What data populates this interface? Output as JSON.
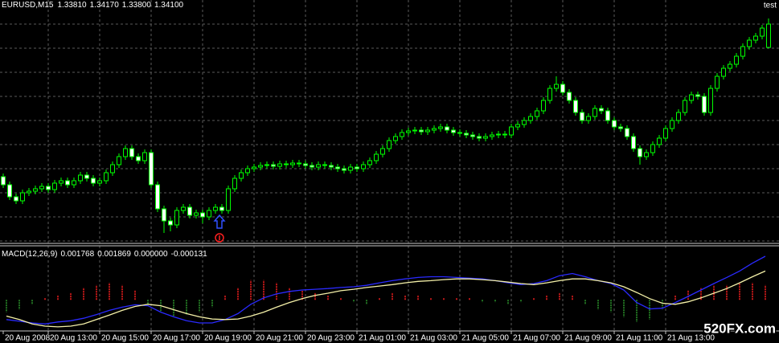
{
  "chart_data": [
    {
      "type": "candlestick",
      "title": "EURUSD,M15",
      "header_values": [
        "1.33810",
        "1.34170",
        "1.33800",
        "1.34100"
      ],
      "annotation": "test",
      "categories": [
        "20 Aug 2008",
        null,
        null,
        null,
        null,
        null,
        null,
        "20 Aug 13:00",
        null,
        null,
        null,
        null,
        null,
        null,
        null,
        "20 Aug 15:00",
        null,
        null,
        null,
        null,
        null,
        null,
        null,
        "20 Aug 17:00",
        null,
        null,
        null,
        null,
        null,
        null,
        null,
        "20 Aug 19:00",
        null,
        null,
        null,
        null,
        null,
        null,
        null,
        "20 Aug 21:00",
        null,
        null,
        null,
        null,
        null,
        null,
        null,
        "20 Aug 23:00",
        null,
        null,
        null,
        null,
        null,
        null,
        null,
        "21 Aug 01:00",
        null,
        null,
        null,
        null,
        null,
        null,
        null,
        "21 Aug 03:00",
        null,
        null,
        null,
        null,
        null,
        null,
        null,
        "21 Aug 05:00",
        null,
        null,
        null,
        null,
        null,
        null,
        null,
        "21 Aug 07:00",
        null,
        null,
        null,
        null,
        null,
        null,
        null,
        "21 Aug 09:00",
        null,
        null,
        null,
        null,
        null,
        null,
        null,
        "21 Aug 11:00",
        null,
        null,
        null,
        null,
        null,
        null,
        null,
        "21 Aug 13:00",
        null,
        null,
        null,
        null,
        null,
        null,
        null,
        null,
        null,
        null,
        null,
        null,
        null,
        null,
        null,
        null
      ],
      "open": [
        1.322,
        1.321,
        1.3195,
        1.319,
        1.32,
        1.3202,
        1.3205,
        1.3208,
        1.3204,
        1.3212,
        1.3215,
        1.321,
        1.3215,
        1.3222,
        1.3218,
        1.3212,
        1.3215,
        1.3225,
        1.3235,
        1.3245,
        1.3255,
        1.3245,
        1.324,
        1.325,
        1.321,
        1.318,
        1.3165,
        1.316,
        1.3178,
        1.3182,
        1.3172,
        1.3175,
        1.317,
        1.3178,
        1.3182,
        1.3178,
        1.3205,
        1.3218,
        1.3225,
        1.323,
        1.3232,
        1.3234,
        1.3235,
        1.3233,
        1.3236,
        1.3235,
        1.3237,
        1.3236,
        1.3234,
        1.3232,
        1.3235,
        1.3234,
        1.3232,
        1.323,
        1.3228,
        1.3232,
        1.323,
        1.3235,
        1.324,
        1.3248,
        1.3255,
        1.3265,
        1.327,
        1.3275,
        1.3277,
        1.3278,
        1.3276,
        1.3278,
        1.328,
        1.3282,
        1.3278,
        1.3275,
        1.3274,
        1.3272,
        1.327,
        1.3268,
        1.327,
        1.3272,
        1.3273,
        1.3272,
        1.3282,
        1.3285,
        1.329,
        1.3295,
        1.3302,
        1.3315,
        1.333,
        1.3335,
        1.3325,
        1.3315,
        1.33,
        1.329,
        1.3295,
        1.3305,
        1.3302,
        1.329,
        1.3282,
        1.328,
        1.327,
        1.3255,
        1.3245,
        1.325,
        1.326,
        1.3268,
        1.328,
        1.329,
        1.33,
        1.3315,
        1.3322,
        1.332,
        1.33,
        1.333,
        1.3345,
        1.3355,
        1.336,
        1.337,
        1.3382,
        1.339,
        1.3395,
        1.3381
      ],
      "high": [
        1.3224,
        1.3214,
        1.3199,
        1.3204,
        1.3206,
        1.3209,
        1.3212,
        1.3212,
        1.3216,
        1.3219,
        1.3219,
        1.3219,
        1.3226,
        1.3226,
        1.3222,
        1.3219,
        1.3229,
        1.3239,
        1.3249,
        1.3259,
        1.3259,
        1.3249,
        1.3254,
        1.3254,
        1.3214,
        1.3184,
        1.3169,
        1.3182,
        1.3186,
        1.3186,
        1.3179,
        1.3179,
        1.3182,
        1.3186,
        1.3186,
        1.3209,
        1.3222,
        1.3229,
        1.3234,
        1.3236,
        1.3238,
        1.3239,
        1.3239,
        1.324,
        1.324,
        1.3241,
        1.3241,
        1.324,
        1.3238,
        1.3239,
        1.3239,
        1.3238,
        1.3236,
        1.3234,
        1.3236,
        1.3236,
        1.3239,
        1.3244,
        1.3252,
        1.3259,
        1.3269,
        1.3274,
        1.3279,
        1.3281,
        1.3282,
        1.3282,
        1.3282,
        1.3284,
        1.3286,
        1.3286,
        1.3282,
        1.3279,
        1.3278,
        1.3276,
        1.3274,
        1.3274,
        1.3276,
        1.3277,
        1.3277,
        1.3286,
        1.3289,
        1.3294,
        1.3299,
        1.3306,
        1.3319,
        1.3334,
        1.3345,
        1.3339,
        1.3329,
        1.3319,
        1.3304,
        1.3299,
        1.3309,
        1.3309,
        1.3306,
        1.3294,
        1.3286,
        1.3284,
        1.3274,
        1.3259,
        1.3254,
        1.3264,
        1.3272,
        1.3284,
        1.3294,
        1.3304,
        1.3319,
        1.3326,
        1.3326,
        1.3324,
        1.3334,
        1.3349,
        1.3359,
        1.3364,
        1.3374,
        1.3386,
        1.3394,
        1.3399,
        1.3409,
        1.3417
      ],
      "low": [
        1.3206,
        1.3191,
        1.3186,
        1.3186,
        1.3196,
        1.3198,
        1.3201,
        1.32,
        1.32,
        1.3208,
        1.3206,
        1.3206,
        1.3211,
        1.3214,
        1.3208,
        1.3208,
        1.3211,
        1.3221,
        1.3231,
        1.3241,
        1.3241,
        1.3236,
        1.3236,
        1.3206,
        1.3176,
        1.315,
        1.3152,
        1.3156,
        1.3174,
        1.3168,
        1.3168,
        1.3162,
        1.3166,
        1.3174,
        1.3174,
        1.3174,
        1.3201,
        1.3214,
        1.3221,
        1.3226,
        1.3228,
        1.323,
        1.3229,
        1.3229,
        1.3231,
        1.3231,
        1.3232,
        1.323,
        1.3228,
        1.3228,
        1.323,
        1.3228,
        1.3226,
        1.3224,
        1.3224,
        1.3226,
        1.3226,
        1.3231,
        1.3236,
        1.3244,
        1.3251,
        1.3261,
        1.3266,
        1.3271,
        1.3273,
        1.3272,
        1.3272,
        1.3274,
        1.3276,
        1.3274,
        1.3271,
        1.327,
        1.3268,
        1.3266,
        1.3264,
        1.3264,
        1.3266,
        1.3268,
        1.3268,
        1.3268,
        1.3278,
        1.3281,
        1.3286,
        1.3291,
        1.3298,
        1.3311,
        1.3326,
        1.3321,
        1.3311,
        1.3296,
        1.3286,
        1.3286,
        1.3291,
        1.3298,
        1.3286,
        1.3278,
        1.3276,
        1.3266,
        1.3251,
        1.3235,
        1.3241,
        1.3246,
        1.3256,
        1.3264,
        1.3276,
        1.3286,
        1.3296,
        1.3311,
        1.3316,
        1.3296,
        1.3296,
        1.3326,
        1.3341,
        1.3351,
        1.3356,
        1.3366,
        1.3378,
        1.3386,
        1.3391,
        1.338
      ],
      "close": [
        1.321,
        1.3195,
        1.319,
        1.32,
        1.3202,
        1.3205,
        1.3208,
        1.3204,
        1.3212,
        1.3215,
        1.321,
        1.3215,
        1.3222,
        1.3218,
        1.3212,
        1.3215,
        1.3225,
        1.3235,
        1.3245,
        1.3255,
        1.3245,
        1.324,
        1.325,
        1.321,
        1.318,
        1.3165,
        1.316,
        1.3178,
        1.3182,
        1.3172,
        1.3175,
        1.317,
        1.3178,
        1.3182,
        1.3178,
        1.3205,
        1.3218,
        1.3225,
        1.323,
        1.3232,
        1.3234,
        1.3235,
        1.3233,
        1.3236,
        1.3235,
        1.3237,
        1.3236,
        1.3234,
        1.3232,
        1.3235,
        1.3234,
        1.3232,
        1.323,
        1.3228,
        1.3232,
        1.323,
        1.3235,
        1.324,
        1.3248,
        1.3255,
        1.3265,
        1.327,
        1.3275,
        1.3277,
        1.3278,
        1.3276,
        1.3278,
        1.328,
        1.3282,
        1.3278,
        1.3275,
        1.3274,
        1.3272,
        1.327,
        1.3268,
        1.327,
        1.3272,
        1.3273,
        1.3272,
        1.3282,
        1.3285,
        1.329,
        1.3295,
        1.3302,
        1.3315,
        1.333,
        1.3335,
        1.3325,
        1.3315,
        1.33,
        1.329,
        1.3295,
        1.3305,
        1.3302,
        1.329,
        1.3282,
        1.328,
        1.327,
        1.3255,
        1.3245,
        1.325,
        1.326,
        1.3268,
        1.328,
        1.329,
        1.33,
        1.3315,
        1.3322,
        1.332,
        1.33,
        1.333,
        1.3345,
        1.3355,
        1.336,
        1.337,
        1.3382,
        1.339,
        1.3395,
        1.3405,
        1.341
      ],
      "wick_color": "#00ff00",
      "up_color": "#000000",
      "down_color": "#ffffff",
      "ylim": [
        1.314,
        1.344
      ],
      "yticks": [
        1.314,
        1.317,
        1.32,
        1.323,
        1.326,
        1.329,
        1.332,
        1.335,
        1.338,
        1.341
      ],
      "grid": true
    },
    {
      "type": "macd",
      "title": "MACD(12,26,9)",
      "header_values": [
        "0.001768",
        "0.001869",
        "0.000000",
        "-0.000131"
      ],
      "ylim": [
        -0.0012,
        0.002
      ],
      "histogram": {
        "up_color": "#ff2020",
        "down_color": "#2e9a2e",
        "values": [
          -0.0005,
          -0.0004,
          -0.0002,
          0.0001,
          0.0002,
          0.0003,
          0.0005,
          0.0006,
          0.0007,
          0.0006,
          0.0004,
          -0.0002,
          -0.0005,
          -0.0007,
          -0.0006,
          -0.0005,
          -0.0003,
          0.0002,
          0.0005,
          0.0008,
          0.0008,
          0.0007,
          0.0005,
          0.0004,
          0.0003,
          0.0002,
          0.0001,
          -0.0001,
          -0.0002,
          0.0001,
          0.0003,
          0.0002,
          0.0002,
          0.0001,
          0.0001,
          0.0001,
          0.0001,
          -0.0001,
          -0.0001,
          -0.0002,
          -0.0001,
          0.0001,
          0.0002,
          0.0003,
          0.0002,
          -0.0002,
          -0.0004,
          -0.0005,
          -0.0007,
          -0.0009,
          -0.0008,
          -0.0004,
          0.0002,
          0.0004,
          0.0005,
          0.0006,
          0.0006,
          0.0007,
          0.0007,
          0.0006
        ]
      },
      "series": [
        {
          "color": "#2a2aff",
          "values": [
            -0.0008,
            -0.00087,
            -0.00094,
            -0.00098,
            -0.0009,
            -0.00085,
            -0.00075,
            -0.0006,
            -0.00043,
            -0.0003,
            -0.0002,
            -0.00024,
            -0.0005,
            -0.00069,
            -0.00085,
            -0.00094,
            -0.00094,
            -0.0008,
            -0.00056,
            -0.00018,
            8e-05,
            0.00024,
            0.00034,
            0.0004,
            0.00043,
            0.00046,
            0.0005,
            0.00053,
            0.00059,
            0.00069,
            0.00078,
            0.00085,
            0.00091,
            0.00094,
            0.00094,
            0.00091,
            0.00088,
            0.00085,
            0.00078,
            0.00069,
            0.00062,
            0.00066,
            0.00078,
            0.00098,
            0.00107,
            0.00094,
            0.00078,
            0.00066,
            0.0004,
            -0.00011,
            -0.00037,
            -0.00034,
            -0.00011,
            0.00014,
            0.0004,
            0.00066,
            0.00091,
            0.00117,
            0.00149,
            0.00177
          ]
        },
        {
          "color": "#f4f0a8",
          "values": [
            -0.00066,
            -0.0008,
            -0.00098,
            -0.00107,
            -0.0011,
            -0.00107,
            -0.00098,
            -0.0008,
            -0.00062,
            -0.00043,
            -0.00027,
            -0.00018,
            -0.00024,
            -0.0004,
            -0.00056,
            -0.00069,
            -0.00078,
            -0.0008,
            -0.00078,
            -0.00066,
            -0.0005,
            -0.0003,
            -0.00011,
            5e-05,
            0.00018,
            0.00027,
            0.00037,
            0.00043,
            0.0005,
            0.00056,
            0.00062,
            0.00069,
            0.00075,
            0.00078,
            0.00082,
            0.00085,
            0.00085,
            0.00082,
            0.00078,
            0.00072,
            0.00066,
            0.00062,
            0.00069,
            0.00078,
            0.00085,
            0.00085,
            0.00078,
            0.00069,
            0.00053,
            0.0003,
            5e-05,
            -0.00014,
            -0.00018,
            -8e-05,
            8e-05,
            0.00027,
            0.00046,
            0.00069,
            0.00094,
            0.00117
          ]
        }
      ]
    }
  ],
  "watermark": "520FX.com"
}
